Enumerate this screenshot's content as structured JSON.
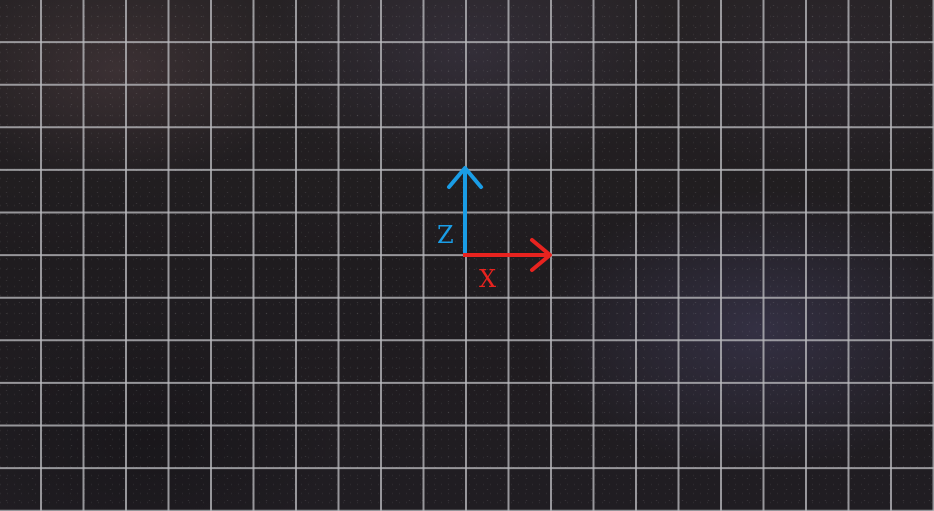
{
  "colors": {
    "background": "#1f1c1f",
    "grid_line": "#b9b9bd",
    "x_axis": "#e8231f",
    "z_axis": "#1a9de6"
  },
  "axes": {
    "x": {
      "label": "X",
      "direction": "right",
      "color": "#e8231f"
    },
    "z": {
      "label": "Z",
      "direction": "up",
      "color": "#1a9de6"
    }
  },
  "grid": {
    "columns": 22,
    "rows": 12
  }
}
